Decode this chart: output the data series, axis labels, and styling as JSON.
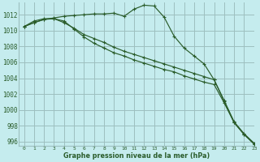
{
  "title": "Graphe pression niveau de la mer (hPa)",
  "bg_color": "#c5ecee",
  "grid_color": "#9dbfbf",
  "line_color": "#2a5c2a",
  "xlim": [
    -0.5,
    23
  ],
  "ylim": [
    995.5,
    1013.5
  ],
  "yticks": [
    996,
    998,
    1000,
    1002,
    1004,
    1006,
    1008,
    1010,
    1012
  ],
  "xticks": [
    0,
    1,
    2,
    3,
    4,
    5,
    6,
    7,
    8,
    9,
    10,
    11,
    12,
    13,
    14,
    15,
    16,
    17,
    18,
    19,
    20,
    21,
    22,
    23
  ],
  "series1": [
    1010.5,
    1011.0,
    1011.4,
    1011.6,
    1011.8,
    1011.9,
    1012.0,
    1012.1,
    1012.1,
    1012.2,
    1011.8,
    1012.7,
    1013.2,
    1013.1,
    1011.7,
    1009.3,
    1007.8,
    1006.8,
    1005.8,
    1003.8,
    1001.2,
    998.5,
    997.0,
    995.8
  ],
  "series2": [
    1010.5,
    1011.0,
    1011.4,
    1011.5,
    1011.2,
    1010.2,
    1009.2,
    1008.4,
    1007.8,
    1007.2,
    1006.8,
    1006.3,
    1005.9,
    1005.5,
    1005.1,
    1004.8,
    1004.3,
    1003.9,
    1003.5,
    1003.2,
    1000.9,
    998.4,
    996.9,
    995.7
  ],
  "series3": [
    1010.5,
    1011.2,
    1011.5,
    1011.5,
    1011.0,
    1010.3,
    1009.5,
    1009.0,
    1008.5,
    1007.9,
    1007.4,
    1007.0,
    1006.6,
    1006.2,
    1005.8,
    1005.4,
    1005.0,
    1004.6,
    1004.2,
    1003.8,
    1001.1,
    998.4,
    996.9,
    995.7
  ]
}
